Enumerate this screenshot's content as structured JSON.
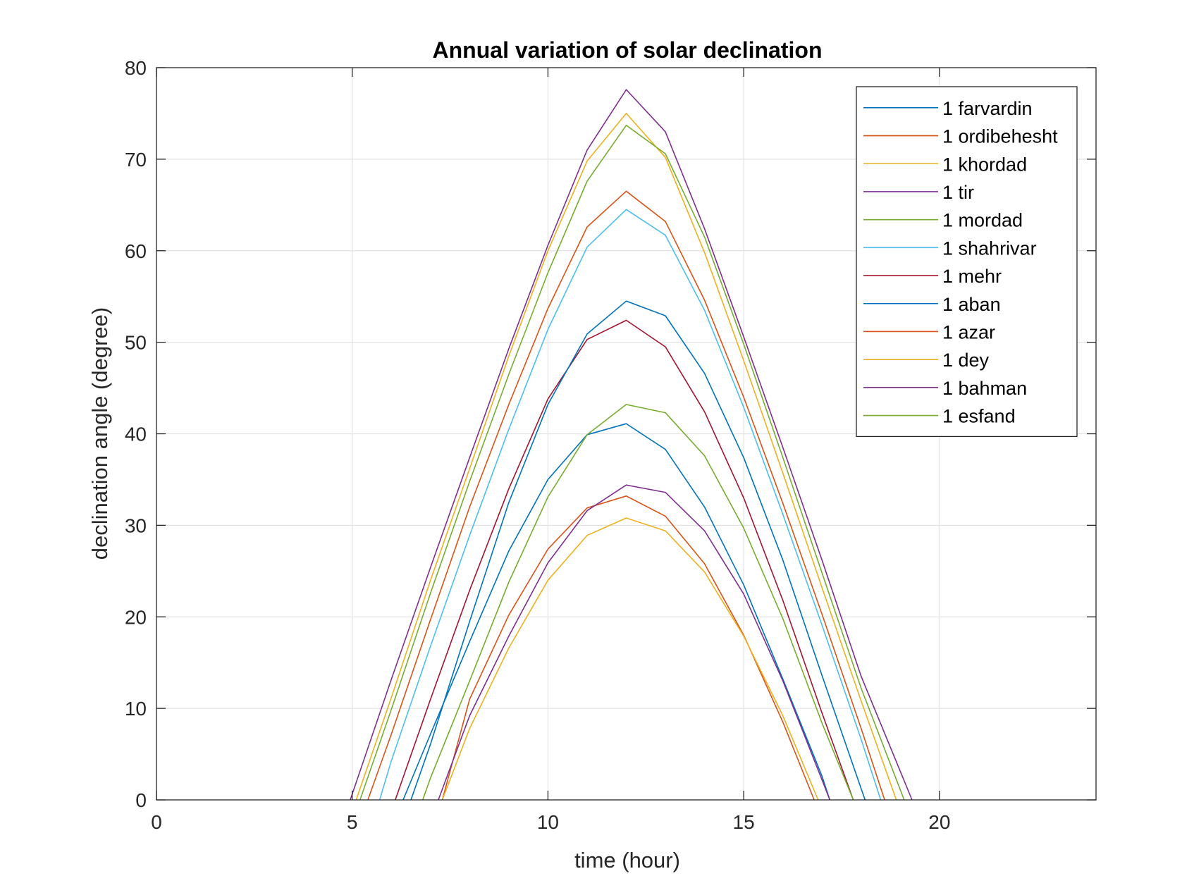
{
  "chart_data": {
    "type": "line",
    "title": "Annual variation of solar declination",
    "xlabel": "time (hour)",
    "ylabel": "declination angle (degree)",
    "xlim": [
      0,
      24
    ],
    "ylim": [
      0,
      80
    ],
    "xticks": [
      0,
      5,
      10,
      15,
      20
    ],
    "yticks": [
      0,
      10,
      20,
      30,
      40,
      50,
      60,
      70,
      80
    ],
    "grid": true,
    "legend_position": "top-right",
    "series": [
      {
        "name": "1 farvardin",
        "color": "#0072BD",
        "points": [
          [
            6.3,
            0
          ],
          [
            7,
            7.2
          ],
          [
            8,
            17.3
          ],
          [
            9,
            27.2
          ],
          [
            10,
            35
          ],
          [
            11,
            39.9
          ],
          [
            12,
            41.1
          ],
          [
            13,
            38.3
          ],
          [
            14,
            32
          ],
          [
            15,
            23.5
          ],
          [
            16,
            13.2
          ],
          [
            17,
            2.6
          ],
          [
            17.2,
            0
          ]
        ]
      },
      {
        "name": "1 ordibehesht",
        "color": "#D95319",
        "points": [
          [
            5.4,
            0
          ],
          [
            6,
            7.2
          ],
          [
            7,
            19.7
          ],
          [
            8,
            32
          ],
          [
            9,
            43.2
          ],
          [
            10,
            53.7
          ],
          [
            11,
            62.6
          ],
          [
            12,
            66.5
          ],
          [
            13,
            63.2
          ],
          [
            14,
            54.6
          ],
          [
            15,
            44
          ],
          [
            16,
            32.4
          ],
          [
            17,
            20.3
          ],
          [
            18,
            7.8
          ],
          [
            18.6,
            0
          ]
        ]
      },
      {
        "name": "1 khordad",
        "color": "#EDB120",
        "points": [
          [
            5.1,
            0
          ],
          [
            6,
            11.2
          ],
          [
            7,
            24
          ],
          [
            8,
            36.2
          ],
          [
            9,
            48.5
          ],
          [
            10,
            60
          ],
          [
            11,
            69.8
          ],
          [
            12,
            75
          ],
          [
            13,
            70.2
          ],
          [
            14,
            59.8
          ],
          [
            15,
            48
          ],
          [
            16,
            35.7
          ],
          [
            17,
            23.2
          ],
          [
            18,
            10.8
          ],
          [
            18.9,
            0
          ]
        ]
      },
      {
        "name": "1 tir",
        "color": "#7E2F8E",
        "points": [
          [
            4.95,
            0
          ],
          [
            6,
            13.2
          ],
          [
            7,
            25.4
          ],
          [
            8,
            37.4
          ],
          [
            9,
            49.3
          ],
          [
            10,
            60.6
          ],
          [
            11,
            71
          ],
          [
            12,
            77.6
          ],
          [
            13,
            73
          ],
          [
            14,
            62.4
          ],
          [
            15,
            50.6
          ],
          [
            16,
            38.5
          ],
          [
            17,
            26.2
          ],
          [
            18,
            13.5
          ],
          [
            19.3,
            0
          ]
        ]
      },
      {
        "name": "1 mordad",
        "color": "#77AC30",
        "points": [
          [
            5.2,
            0
          ],
          [
            6,
            9.9
          ],
          [
            7,
            22.6
          ],
          [
            8,
            34.8
          ],
          [
            9,
            46.5
          ],
          [
            10,
            57.6
          ],
          [
            11,
            67.6
          ],
          [
            12,
            73.7
          ],
          [
            13,
            70.6
          ],
          [
            14,
            61.5
          ],
          [
            15,
            49.8
          ],
          [
            16,
            37.4
          ],
          [
            17,
            24.8
          ],
          [
            18,
            12.2
          ],
          [
            19.1,
            0
          ]
        ]
      },
      {
        "name": "1 shahrivar",
        "color": "#4DBEEE",
        "points": [
          [
            5.7,
            0
          ],
          [
            6,
            4.3
          ],
          [
            7,
            16.8
          ],
          [
            8,
            28.9
          ],
          [
            9,
            40.5
          ],
          [
            10,
            51.4
          ],
          [
            11,
            60.4
          ],
          [
            12,
            64.5
          ],
          [
            13,
            61.7
          ],
          [
            14,
            53.5
          ],
          [
            15,
            42.9
          ],
          [
            16,
            31.2
          ],
          [
            17,
            19.1
          ],
          [
            18,
            6.6
          ],
          [
            18.5,
            0
          ]
        ]
      },
      {
        "name": "1 mehr",
        "color": "#A2142F",
        "points": [
          [
            6.1,
            0
          ],
          [
            7,
            11
          ],
          [
            8,
            22.9
          ],
          [
            9,
            34
          ],
          [
            10,
            43.8
          ],
          [
            11,
            50.3
          ],
          [
            12,
            52.4
          ],
          [
            13,
            49.5
          ],
          [
            14,
            42.4
          ],
          [
            15,
            33
          ],
          [
            16,
            21.8
          ],
          [
            17,
            9.5
          ],
          [
            17.8,
            0
          ]
        ]
      },
      {
        "name": "1 aban",
        "color": "#0072BD",
        "points": [
          [
            6.5,
            0
          ],
          [
            7,
            6.1
          ],
          [
            8,
            19.5
          ],
          [
            9,
            32.5
          ],
          [
            10,
            43.2
          ],
          [
            11,
            50.9
          ],
          [
            12,
            54.5
          ],
          [
            13,
            52.9
          ],
          [
            14,
            46.6
          ],
          [
            15,
            37.4
          ],
          [
            16,
            26.2
          ],
          [
            17,
            13.6
          ],
          [
            18.1,
            0
          ]
        ]
      },
      {
        "name": "1 azar",
        "color": "#D95319",
        "points": [
          [
            7.3,
            0
          ],
          [
            8,
            11
          ],
          [
            9,
            20.2
          ],
          [
            10,
            27.4
          ],
          [
            11,
            31.9
          ],
          [
            12,
            33.2
          ],
          [
            13,
            31
          ],
          [
            14,
            25.8
          ],
          [
            15,
            18
          ],
          [
            16,
            8.5
          ],
          [
            16.8,
            0
          ]
        ]
      },
      {
        "name": "1 dey",
        "color": "#EDB120",
        "points": [
          [
            7.3,
            0
          ],
          [
            8,
            7.8
          ],
          [
            9,
            16.6
          ],
          [
            10,
            24
          ],
          [
            11,
            28.9
          ],
          [
            12,
            30.8
          ],
          [
            13,
            29.4
          ],
          [
            14,
            24.9
          ],
          [
            15,
            17.9
          ],
          [
            16,
            9.2
          ],
          [
            16.9,
            0
          ]
        ]
      },
      {
        "name": "1 bahman",
        "color": "#7E2F8E",
        "points": [
          [
            7.2,
            0
          ],
          [
            8,
            9.2
          ],
          [
            9,
            17.9
          ],
          [
            10,
            25.9
          ],
          [
            11,
            31.6
          ],
          [
            12,
            34.4
          ],
          [
            13,
            33.6
          ],
          [
            14,
            29.4
          ],
          [
            15,
            22.5
          ],
          [
            16,
            13
          ],
          [
            17,
            2.2
          ],
          [
            17.2,
            0
          ]
        ]
      },
      {
        "name": "1 esfand",
        "color": "#77AC30",
        "points": [
          [
            6.8,
            0
          ],
          [
            7,
            2.4
          ],
          [
            8,
            13
          ],
          [
            9,
            23.8
          ],
          [
            10,
            33.1
          ],
          [
            11,
            39.9
          ],
          [
            12,
            43.2
          ],
          [
            13,
            42.3
          ],
          [
            14,
            37.6
          ],
          [
            15,
            29.7
          ],
          [
            16,
            19.8
          ],
          [
            17,
            8.4
          ],
          [
            17.8,
            0
          ]
        ]
      }
    ]
  }
}
